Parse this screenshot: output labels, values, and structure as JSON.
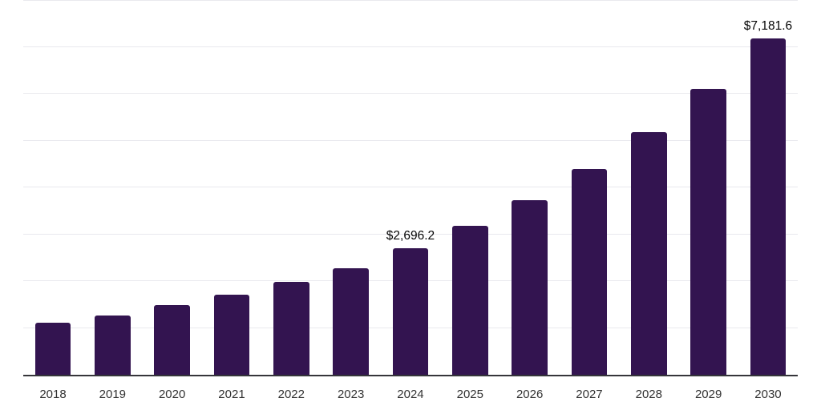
{
  "chart_data": {
    "type": "bar",
    "title": "",
    "categories": [
      "2018",
      "2019",
      "2020",
      "2021",
      "2022",
      "2023",
      "2024",
      "2025",
      "2026",
      "2027",
      "2028",
      "2029",
      "2030"
    ],
    "values": [
      1110,
      1270,
      1490,
      1715,
      1990,
      2280,
      2696.2,
      3175,
      3720,
      4395,
      5175,
      6095,
      7181.6
    ],
    "value_labels": [
      null,
      null,
      null,
      null,
      null,
      null,
      "$2,696.2",
      null,
      null,
      null,
      null,
      null,
      "$7,181.6"
    ],
    "ylim": [
      0,
      8000
    ],
    "gridline_interval": 1000,
    "grid": "horizontal",
    "legend": "none",
    "xlabel": "",
    "ylabel": "",
    "bar_color": "#331450",
    "axis_line_color": "#35353a",
    "gridline_color": "#e9e9ee",
    "tick_label_color": "#333333",
    "data_label_color": "#050505"
  }
}
